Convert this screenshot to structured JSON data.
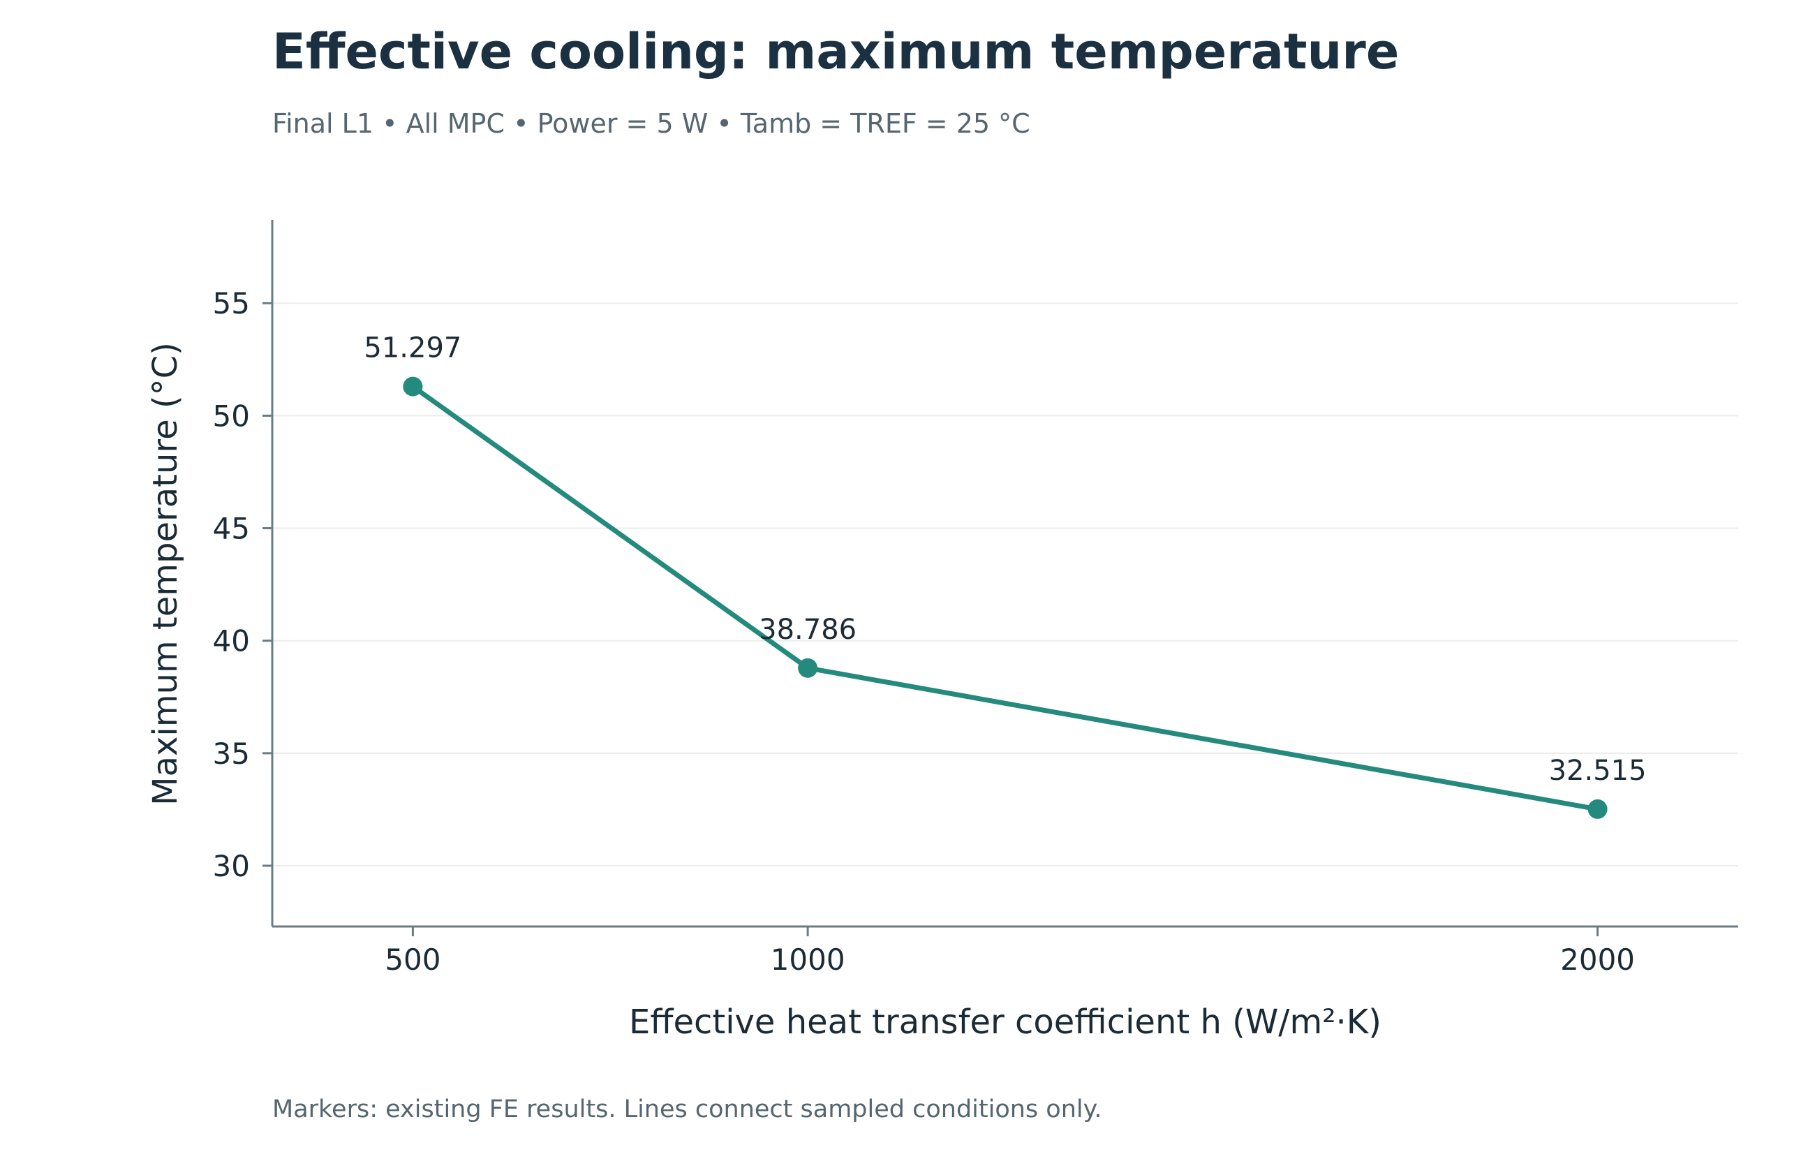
{
  "chart_data": {
    "type": "line",
    "title": "Effective cooling: maximum temperature",
    "subtitle": "Final L1 • All MPC • Power = 5 W • Tamb = TREF = 25 °C",
    "xlabel": "Effective heat transfer coefficient h (W/m²·K)",
    "ylabel": "Maximum temperature (°C)",
    "x_ticks": [
      "500",
      "1000",
      "2000"
    ],
    "y_ticks": [
      "30",
      "35",
      "40",
      "45",
      "50",
      "55"
    ],
    "ylim": [
      27.3,
      58.7
    ],
    "xlim": [
      322,
      2178
    ],
    "grid": "horizontal",
    "color": "#258a7e",
    "series": [
      {
        "x": [
          500,
          1000,
          2000
        ],
        "y": [
          51.297,
          38.786,
          32.515
        ],
        "labels": [
          "51.297",
          "38.786",
          "32.515"
        ]
      }
    ],
    "footnote": "Markers: existing FE results. Lines connect sampled conditions only."
  }
}
